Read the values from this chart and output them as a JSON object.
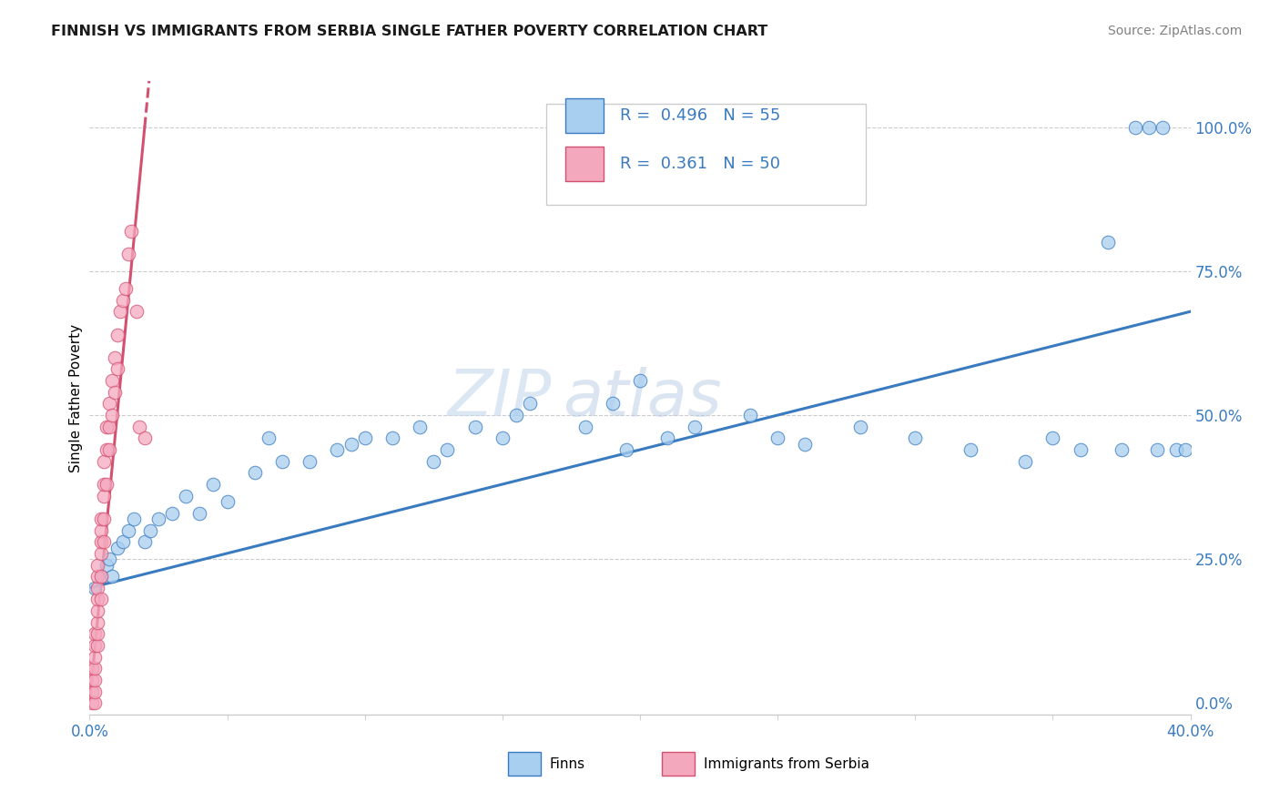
{
  "title": "FINNISH VS IMMIGRANTS FROM SERBIA SINGLE FATHER POVERTY CORRELATION CHART",
  "source": "Source: ZipAtlas.com",
  "ylabel": "Single Father Poverty",
  "xlim": [
    0,
    0.4
  ],
  "ylim": [
    -0.02,
    1.08
  ],
  "finn_color": "#a8cef0",
  "serbia_color": "#f4a8be",
  "finn_line_color": "#3a7bbf",
  "serbia_line_color": "#d45070",
  "watermark_zip": "ZIP",
  "watermark_atlas": "atlas",
  "finns_x": [
    0.002,
    0.004,
    0.006,
    0.007,
    0.008,
    0.01,
    0.012,
    0.014,
    0.016,
    0.02,
    0.022,
    0.025,
    0.03,
    0.035,
    0.04,
    0.045,
    0.05,
    0.06,
    0.065,
    0.07,
    0.08,
    0.09,
    0.095,
    0.1,
    0.11,
    0.12,
    0.125,
    0.13,
    0.14,
    0.15,
    0.155,
    0.16,
    0.18,
    0.19,
    0.195,
    0.2,
    0.21,
    0.22,
    0.24,
    0.25,
    0.26,
    0.28,
    0.3,
    0.32,
    0.34,
    0.35,
    0.36,
    0.37,
    0.375,
    0.38,
    0.385,
    0.388,
    0.39,
    0.395,
    0.398
  ],
  "finns_y": [
    0.2,
    0.22,
    0.24,
    0.25,
    0.22,
    0.27,
    0.28,
    0.3,
    0.32,
    0.28,
    0.3,
    0.32,
    0.33,
    0.36,
    0.33,
    0.38,
    0.35,
    0.4,
    0.46,
    0.42,
    0.42,
    0.44,
    0.45,
    0.46,
    0.46,
    0.48,
    0.42,
    0.44,
    0.48,
    0.46,
    0.5,
    0.52,
    0.48,
    0.52,
    0.44,
    0.56,
    0.46,
    0.48,
    0.5,
    0.46,
    0.45,
    0.48,
    0.46,
    0.44,
    0.42,
    0.46,
    0.44,
    0.8,
    0.44,
    1.0,
    1.0,
    0.44,
    1.0,
    0.44,
    0.44
  ],
  "serbia_x": [
    0.001,
    0.001,
    0.001,
    0.001,
    0.002,
    0.002,
    0.002,
    0.002,
    0.002,
    0.002,
    0.002,
    0.003,
    0.003,
    0.003,
    0.003,
    0.003,
    0.003,
    0.003,
    0.003,
    0.004,
    0.004,
    0.004,
    0.004,
    0.004,
    0.004,
    0.005,
    0.005,
    0.005,
    0.005,
    0.005,
    0.006,
    0.006,
    0.006,
    0.007,
    0.007,
    0.007,
    0.008,
    0.008,
    0.009,
    0.009,
    0.01,
    0.01,
    0.011,
    0.012,
    0.013,
    0.014,
    0.015,
    0.017,
    0.018,
    0.02
  ],
  "serbia_y": [
    0.0,
    0.02,
    0.04,
    0.06,
    0.0,
    0.02,
    0.04,
    0.06,
    0.08,
    0.1,
    0.12,
    0.1,
    0.12,
    0.14,
    0.16,
    0.18,
    0.2,
    0.22,
    0.24,
    0.18,
    0.22,
    0.26,
    0.28,
    0.3,
    0.32,
    0.28,
    0.32,
    0.36,
    0.38,
    0.42,
    0.38,
    0.44,
    0.48,
    0.44,
    0.48,
    0.52,
    0.5,
    0.56,
    0.54,
    0.6,
    0.58,
    0.64,
    0.68,
    0.7,
    0.72,
    0.78,
    0.82,
    0.68,
    0.48,
    0.46
  ]
}
